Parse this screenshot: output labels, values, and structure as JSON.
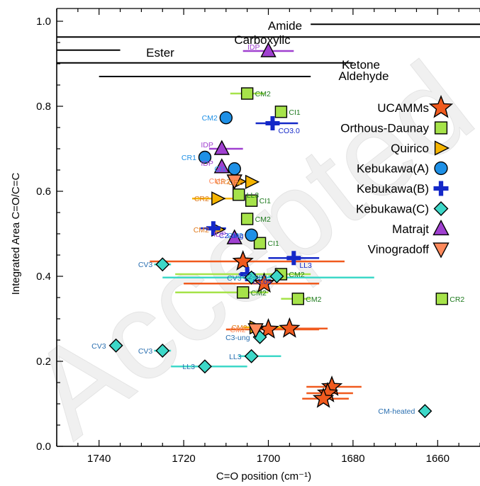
{
  "chart_data": {
    "type": "scatter",
    "title": "",
    "xlabel": "C=O position (cm⁻¹)",
    "ylabel": "Integrated Area C=O/C=C",
    "xlim": [
      1750,
      1650
    ],
    "ylim": [
      0.0,
      1.03
    ],
    "x_reversed": true,
    "xticks": [
      1740,
      1720,
      1700,
      1680,
      1660
    ],
    "xtick_labels": [
      "1740",
      "1720",
      "1700",
      "1680",
      "1660"
    ],
    "yticks": [
      0.0,
      0.2,
      0.4,
      0.6,
      0.8,
      1.0
    ],
    "ytick_labels": [
      "0.0",
      "0.2",
      "0.4",
      "0.6",
      "0.8",
      "1.0"
    ],
    "grid": false,
    "legend_position": "right",
    "watermark": "Accepted",
    "reference_ranges": [
      {
        "label": "Amide",
        "x_from": 1690,
        "x_to": 1650,
        "y": 0.993
      },
      {
        "label": "Carboxylic",
        "x_from": 1750,
        "x_to": 1650,
        "y": 0.963
      },
      {
        "label": "Ester",
        "x_from": 1750,
        "x_to": 1735,
        "y": 0.932
      },
      {
        "label": "Ketone",
        "x_from": 1750,
        "x_to": 1680,
        "y": 0.902
      },
      {
        "label": "Aldehyde",
        "x_from": 1740,
        "x_to": 1690,
        "y": 0.87
      }
    ],
    "reference_range_color": "#000000",
    "series": [
      {
        "name": "UCAMMs",
        "marker": "star",
        "color": "#f05a1e",
        "points": [
          {
            "x": 1706,
            "y": 0.435,
            "xerr": [
              1728,
              1682
            ]
          },
          {
            "x": 1701,
            "y": 0.383,
            "xerr": [
              1720,
              1688
            ]
          },
          {
            "x": 1700,
            "y": 0.275,
            "xerr": [
              1710,
              1688
            ]
          },
          {
            "x": 1695,
            "y": 0.277,
            "xerr": [
              1704,
              1686
            ]
          },
          {
            "x": 1685,
            "y": 0.14,
            "xerr": [
              1691,
              1678
            ]
          },
          {
            "x": 1686,
            "y": 0.125,
            "xerr": [
              1691,
              1680
            ]
          },
          {
            "x": 1687,
            "y": 0.112,
            "xerr": [
              1692,
              1681
            ]
          }
        ]
      },
      {
        "name": "Orthous-Daunay",
        "marker": "square",
        "color": "#a6e34a",
        "label_color": "#1e7a1e",
        "points": [
          {
            "x": 1705,
            "y": 0.83,
            "label": "CM2",
            "xerr": [
              1709,
              1701
            ]
          },
          {
            "x": 1697,
            "y": 0.787,
            "label": "CI1"
          },
          {
            "x": 1707,
            "y": 0.592,
            "label": "LL3"
          },
          {
            "x": 1704,
            "y": 0.578,
            "label": "CI1"
          },
          {
            "x": 1705,
            "y": 0.535,
            "label": "CM2"
          },
          {
            "x": 1702,
            "y": 0.478,
            "label": "CI1"
          },
          {
            "x": 1697,
            "y": 0.405,
            "label": "CM2",
            "xerr": [
              1722,
              1690
            ]
          },
          {
            "x": 1706,
            "y": 0.362,
            "label": "CM2",
            "xerr": [
              1722,
              1700
            ]
          },
          {
            "x": 1693,
            "y": 0.347,
            "label": "CM2",
            "xerr": [
              1697,
              1690
            ]
          },
          {
            "x": 1659,
            "y": 0.347,
            "label": "CR2"
          }
        ]
      },
      {
        "name": "Quirico",
        "marker": "triangle-right",
        "color": "#f5b400",
        "label_color": "#e07b1e",
        "points": [
          {
            "x": 1707,
            "y": 0.623,
            "label": "CR2"
          },
          {
            "x": 1704,
            "y": 0.622,
            "label": "CR2"
          },
          {
            "x": 1712,
            "y": 0.583,
            "label": "CR2",
            "xerr": [
              1718,
              1706
            ]
          },
          {
            "x": 1712,
            "y": 0.51,
            "label": "CM2"
          },
          {
            "x": 1703,
            "y": 0.28,
            "label": "CM2",
            "xerr": [
              1706,
              1696
            ]
          }
        ]
      },
      {
        "name": "Kebukawa(A)",
        "marker": "circle",
        "color": "#1e90e6",
        "label_color": "#1e90e6",
        "points": [
          {
            "x": 1710,
            "y": 0.773,
            "label": "CM2"
          },
          {
            "x": 1715,
            "y": 0.68,
            "label": "CR1"
          },
          {
            "x": 1708,
            "y": 0.653,
            "label": "CI1"
          },
          {
            "x": 1704,
            "y": 0.497,
            "label": "CM2"
          }
        ]
      },
      {
        "name": "Kebukawa(B)",
        "marker": "cross",
        "color": "#1428c8",
        "label_color": "#1428c8",
        "points": [
          {
            "x": 1699,
            "y": 0.76,
            "label": "CO3.0",
            "xerr": [
              1703,
              1693
            ]
          },
          {
            "x": 1713,
            "y": 0.513,
            "label": "C2-ung",
            "xerr": [
              1716,
              1710
            ]
          },
          {
            "x": 1694,
            "y": 0.443,
            "label": "LL3",
            "xerr": [
              1700,
              1688
            ]
          },
          {
            "x": 1705,
            "y": 0.405,
            "label": "L3.05",
            "xerr": [
              1707,
              1703
            ]
          }
        ]
      },
      {
        "name": "Kebukawa(C)",
        "marker": "diamond",
        "color": "#3dd8c8",
        "label_color": "#2a6fb0",
        "points": [
          {
            "x": 1725,
            "y": 0.428,
            "label": "CV3",
            "xerr": [
              1727,
              1723
            ]
          },
          {
            "x": 1704,
            "y": 0.397,
            "label": "CV3",
            "xerr": [
              1725,
              1675
            ]
          },
          {
            "x": 1698,
            "y": 0.4,
            "label": "C2-ung",
            "xerr": [
              1700,
              1696
            ]
          },
          {
            "x": 1736,
            "y": 0.237,
            "label": "CV3"
          },
          {
            "x": 1725,
            "y": 0.225,
            "label": "CV3",
            "xerr": [
              1727,
              1723
            ]
          },
          {
            "x": 1702,
            "y": 0.257,
            "label": "C3-ung"
          },
          {
            "x": 1704,
            "y": 0.212,
            "label": "LL3",
            "xerr": [
              1707,
              1697
            ]
          },
          {
            "x": 1715,
            "y": 0.188,
            "label": "LL3",
            "xerr": [
              1723,
              1705
            ]
          },
          {
            "x": 1663,
            "y": 0.083,
            "label": "CM-heated"
          }
        ]
      },
      {
        "name": "Matrajt",
        "marker": "triangle-up",
        "color": "#a040d0",
        "label_color": "#a040d0",
        "points": [
          {
            "x": 1700,
            "y": 0.93,
            "label": "IDP",
            "xerr": [
              1706,
              1694
            ]
          },
          {
            "x": 1711,
            "y": 0.7,
            "label": "IDP",
            "xerr": [
              1714,
              1706
            ]
          },
          {
            "x": 1711,
            "y": 0.657,
            "label": "IDP"
          },
          {
            "x": 1708,
            "y": 0.49,
            "label": "IDP"
          }
        ]
      },
      {
        "name": "Vinogradoff",
        "marker": "triangle-down",
        "color": "#ff8a5c",
        "points": [
          {
            "x": 1708,
            "y": 0.625,
            "label": "CM2"
          },
          {
            "x": 1703,
            "y": 0.275,
            "label": "CM2"
          }
        ]
      }
    ]
  }
}
